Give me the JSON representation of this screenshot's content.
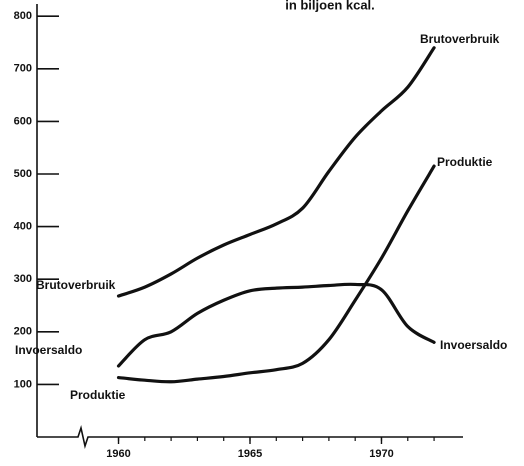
{
  "chart_data": {
    "type": "line",
    "title": "in biljoen kcal.",
    "x": [
      1960,
      1961,
      1962,
      1963,
      1964,
      1965,
      1966,
      1967,
      1968,
      1969,
      1970,
      1971,
      1972
    ],
    "series": [
      {
        "name": "Brutoverbruik",
        "color": "#111111",
        "values": [
          268,
          285,
          310,
          340,
          365,
          385,
          405,
          435,
          505,
          570,
          620,
          665,
          740
        ]
      },
      {
        "name": "Produktie",
        "color": "#111111",
        "values": [
          113,
          108,
          105,
          110,
          115,
          122,
          128,
          140,
          185,
          260,
          340,
          430,
          515
        ]
      },
      {
        "name": "Invoersaldo",
        "color": "#111111",
        "values": [
          135,
          185,
          200,
          235,
          260,
          278,
          283,
          285,
          288,
          290,
          280,
          210,
          180
        ]
      }
    ],
    "xlim": [
      1956.9,
      1973.1
    ],
    "xticks": [
      1960,
      1965,
      1970
    ],
    "ylim": [
      0,
      800
    ],
    "yticks": [
      100,
      200,
      300,
      400,
      500,
      600,
      700,
      800
    ],
    "grid": false
  }
}
